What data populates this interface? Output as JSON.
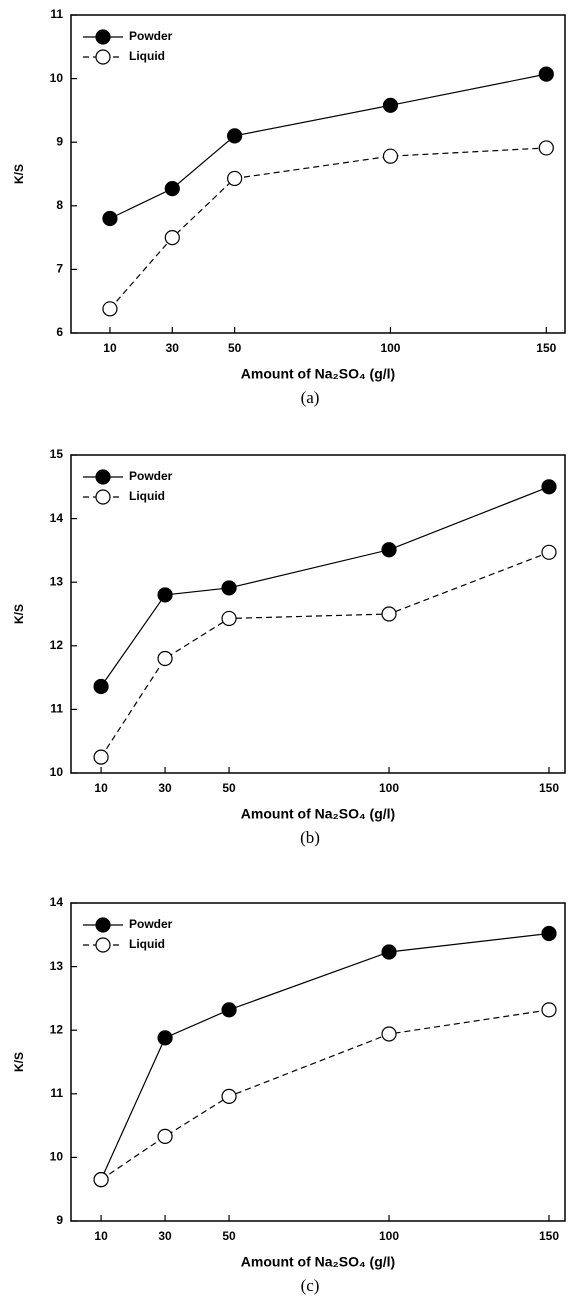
{
  "chart_data": [
    {
      "type": "line",
      "xlabel": "Amount of Na₂SO₄ (g/l)",
      "ylabel": "K/S",
      "caption": "(a)",
      "x": [
        10,
        30,
        50,
        100,
        150
      ],
      "xlim": [
        -2.5,
        156
      ],
      "xticks": [
        10,
        30,
        50,
        100,
        150
      ],
      "ylim": [
        6,
        11
      ],
      "yticks": [
        6,
        7,
        8,
        9,
        10,
        11
      ],
      "legend": "upper-left",
      "series": [
        {
          "name": "Powder",
          "color": "#000000",
          "values": [
            7.8,
            8.27,
            9.1,
            9.58,
            10.07
          ]
        },
        {
          "name": "Liquid",
          "color": "#000000",
          "values": [
            6.38,
            7.5,
            8.43,
            8.78,
            8.91
          ]
        }
      ]
    },
    {
      "type": "line",
      "xlabel": "Amount of Na₂SO₄ (g/l)",
      "ylabel": "K/S",
      "caption": "(b)",
      "x": [
        10,
        30,
        50,
        100,
        150
      ],
      "xlim": [
        0.6,
        155
      ],
      "xticks": [
        10,
        30,
        50,
        100,
        150
      ],
      "ylim": [
        10,
        15
      ],
      "yticks": [
        10,
        11,
        12,
        13,
        14,
        15
      ],
      "legend": "upper-left",
      "series": [
        {
          "name": "Powder",
          "color": "#000000",
          "values": [
            11.36,
            12.8,
            12.91,
            13.51,
            14.5
          ]
        },
        {
          "name": "Liquid",
          "color": "#000000",
          "values": [
            10.25,
            11.8,
            12.43,
            12.5,
            13.47
          ]
        }
      ]
    },
    {
      "type": "line",
      "xlabel": "Amount of Na₂SO₄ (g/l)",
      "ylabel": "K/S",
      "caption": "(c)",
      "x": [
        10,
        30,
        50,
        100,
        150
      ],
      "xlim": [
        0.6,
        155
      ],
      "xticks": [
        10,
        30,
        50,
        100,
        150
      ],
      "ylim": [
        9,
        14
      ],
      "yticks": [
        9,
        10,
        11,
        12,
        13,
        14
      ],
      "legend": "upper-left",
      "series": [
        {
          "name": "Powder",
          "color": "#000000",
          "values": [
            9.65,
            11.88,
            12.32,
            13.23,
            13.52
          ]
        },
        {
          "name": "Liquid",
          "color": "#000000",
          "values": [
            9.65,
            10.33,
            10.96,
            11.94,
            12.32
          ]
        }
      ]
    }
  ]
}
